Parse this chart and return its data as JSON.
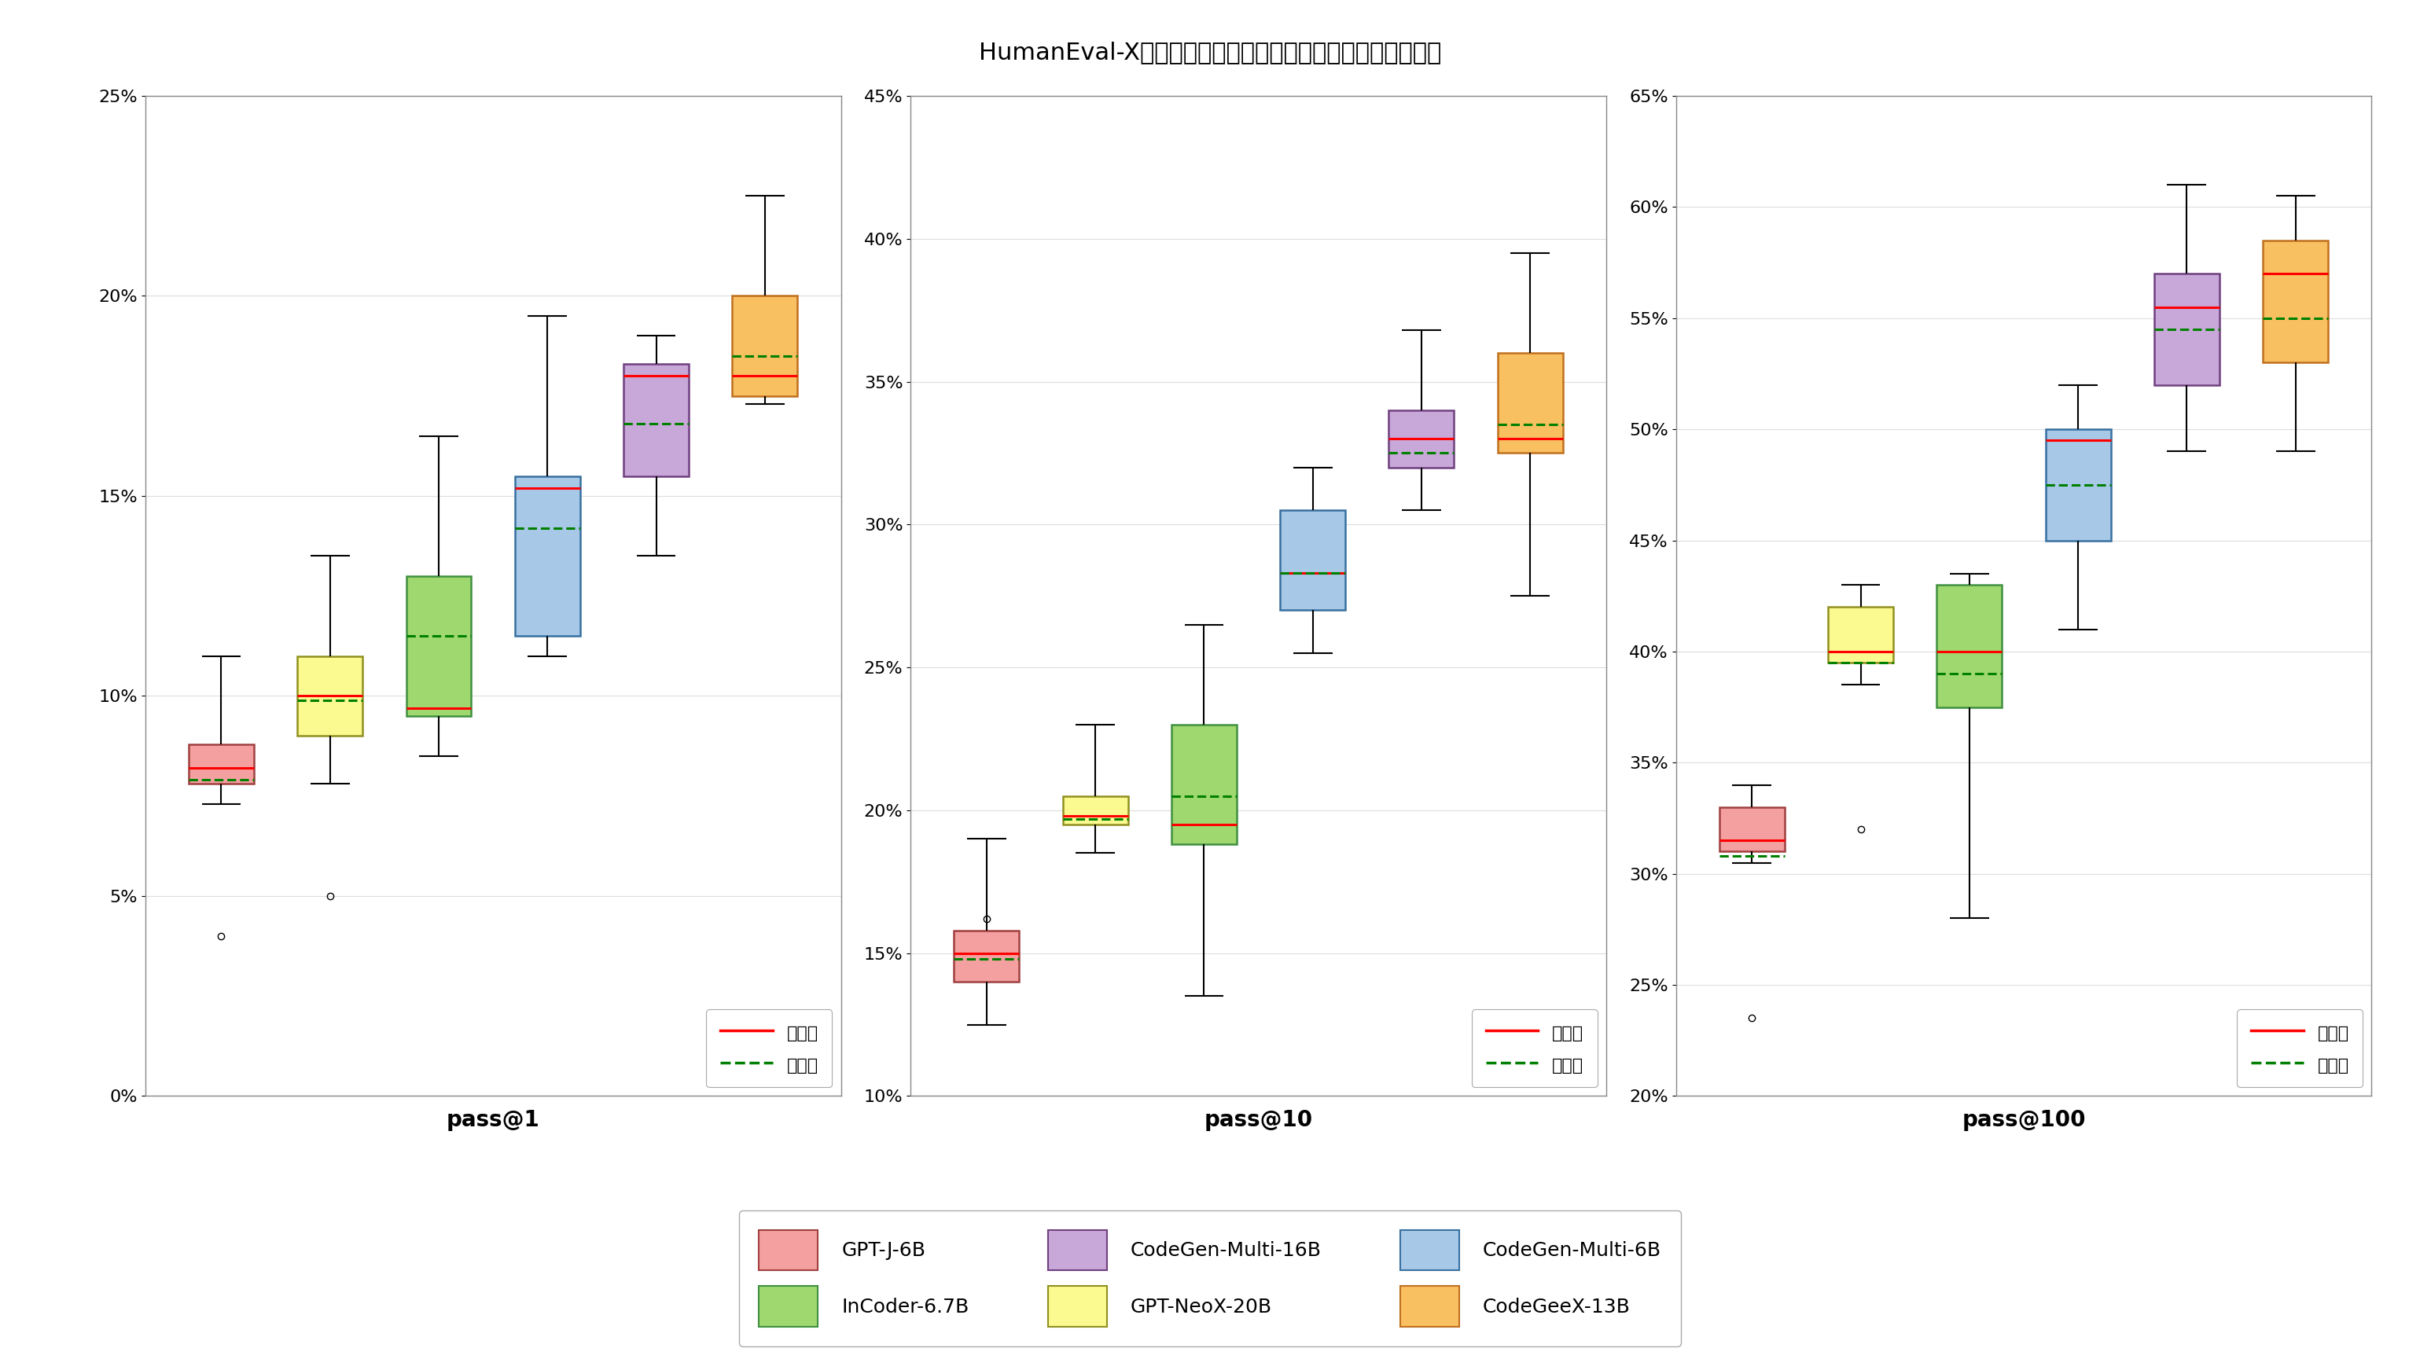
{
  "title": "HumanEval-X基准上的多语言代码生成性能（五种编程语言）",
  "subplots": [
    "pass@1",
    "pass@10",
    "pass@100"
  ],
  "models": [
    "GPT-J-6B",
    "GPT-NeoX-20B",
    "InCoder-6.7B",
    "CodeGen-Multi-6B",
    "CodeGen-Multi-16B",
    "CodeGeeX-13B"
  ],
  "colors": {
    "GPT-J-6B": "#F4A0A0",
    "GPT-NeoX-20B": "#FAFA90",
    "InCoder-6.7B": "#A0D870",
    "CodeGen-Multi-6B": "#A8C8E8",
    "CodeGen-Multi-16B": "#C8A8D8",
    "CodeGeeX-13B": "#F8C060"
  },
  "edge_colors": {
    "GPT-J-6B": "#A04040",
    "GPT-NeoX-20B": "#909020",
    "InCoder-6.7B": "#409040",
    "CodeGen-Multi-6B": "#3870A0",
    "CodeGen-Multi-16B": "#704080",
    "CodeGeeX-13B": "#C07020"
  },
  "pass1": {
    "GPT-J-6B": {
      "whislo": 7.3,
      "q1": 7.8,
      "med": 8.2,
      "mean": 7.9,
      "q3": 8.8,
      "whishi": 11.0,
      "fliers": [
        4.0
      ]
    },
    "GPT-NeoX-20B": {
      "whislo": 7.8,
      "q1": 9.0,
      "med": 10.0,
      "mean": 9.9,
      "q3": 11.0,
      "whishi": 13.5,
      "fliers": [
        5.0
      ]
    },
    "InCoder-6.7B": {
      "whislo": 8.5,
      "q1": 9.5,
      "med": 9.7,
      "mean": 11.5,
      "q3": 13.0,
      "whishi": 16.5,
      "fliers": []
    },
    "CodeGen-Multi-6B": {
      "whislo": 11.0,
      "q1": 11.5,
      "med": 15.2,
      "mean": 14.2,
      "q3": 15.5,
      "whishi": 19.5,
      "fliers": []
    },
    "CodeGen-Multi-16B": {
      "whislo": 13.5,
      "q1": 15.5,
      "med": 18.0,
      "mean": 16.8,
      "q3": 18.3,
      "whishi": 19.0,
      "fliers": []
    },
    "CodeGeeX-13B": {
      "whislo": 17.3,
      "q1": 17.5,
      "med": 18.0,
      "mean": 18.5,
      "q3": 20.0,
      "whishi": 22.5,
      "fliers": []
    }
  },
  "pass10": {
    "GPT-J-6B": {
      "whislo": 12.5,
      "q1": 14.0,
      "med": 15.0,
      "mean": 14.8,
      "q3": 15.8,
      "whishi": 19.0,
      "fliers": [
        16.2
      ]
    },
    "GPT-NeoX-20B": {
      "whislo": 18.5,
      "q1": 19.5,
      "med": 19.8,
      "mean": 19.7,
      "q3": 20.5,
      "whishi": 23.0,
      "fliers": []
    },
    "InCoder-6.7B": {
      "whislo": 13.5,
      "q1": 18.8,
      "med": 19.5,
      "mean": 20.5,
      "q3": 23.0,
      "whishi": 26.5,
      "fliers": []
    },
    "CodeGen-Multi-6B": {
      "whislo": 25.5,
      "q1": 27.0,
      "med": 28.3,
      "mean": 28.3,
      "q3": 30.5,
      "whishi": 32.0,
      "fliers": []
    },
    "CodeGen-Multi-16B": {
      "whislo": 30.5,
      "q1": 32.0,
      "med": 33.0,
      "mean": 32.5,
      "q3": 34.0,
      "whishi": 36.8,
      "fliers": []
    },
    "CodeGeeX-13B": {
      "whislo": 27.5,
      "q1": 32.5,
      "med": 33.0,
      "mean": 33.5,
      "q3": 36.0,
      "whishi": 39.5,
      "fliers": []
    }
  },
  "pass100": {
    "GPT-J-6B": {
      "whislo": 30.5,
      "q1": 31.0,
      "med": 31.5,
      "mean": 30.8,
      "q3": 33.0,
      "whishi": 34.0,
      "fliers": [
        23.5
      ]
    },
    "GPT-NeoX-20B": {
      "whislo": 38.5,
      "q1": 39.5,
      "med": 40.0,
      "mean": 39.5,
      "q3": 42.0,
      "whishi": 43.0,
      "fliers": [
        32.0
      ]
    },
    "InCoder-6.7B": {
      "whislo": 28.0,
      "q1": 37.5,
      "med": 40.0,
      "mean": 39.0,
      "q3": 43.0,
      "whishi": 43.5,
      "fliers": []
    },
    "CodeGen-Multi-6B": {
      "whislo": 41.0,
      "q1": 45.0,
      "med": 49.5,
      "mean": 47.5,
      "q3": 50.0,
      "whishi": 52.0,
      "fliers": []
    },
    "CodeGen-Multi-16B": {
      "whislo": 49.0,
      "q1": 52.0,
      "med": 55.5,
      "mean": 54.5,
      "q3": 57.0,
      "whishi": 61.0,
      "fliers": []
    },
    "CodeGeeX-13B": {
      "whislo": 49.0,
      "q1": 53.0,
      "med": 57.0,
      "mean": 55.0,
      "q3": 58.5,
      "whishi": 60.5,
      "fliers": []
    }
  },
  "ylims": {
    "pass@1": [
      0,
      25
    ],
    "pass@10": [
      10,
      45
    ],
    "pass@100": [
      20,
      65
    ]
  },
  "yticks": {
    "pass@1": [
      0,
      5,
      10,
      15,
      20,
      25
    ],
    "pass@10": [
      10,
      15,
      20,
      25,
      30,
      35,
      40,
      45
    ],
    "pass@100": [
      20,
      25,
      30,
      35,
      40,
      45,
      50,
      55,
      60,
      65
    ]
  },
  "background_color": "#FFFFFF",
  "grid_color": "#DDDDDD",
  "title_fontsize": 22,
  "label_fontsize": 18,
  "tick_fontsize": 16,
  "legend_fontsize": 16
}
